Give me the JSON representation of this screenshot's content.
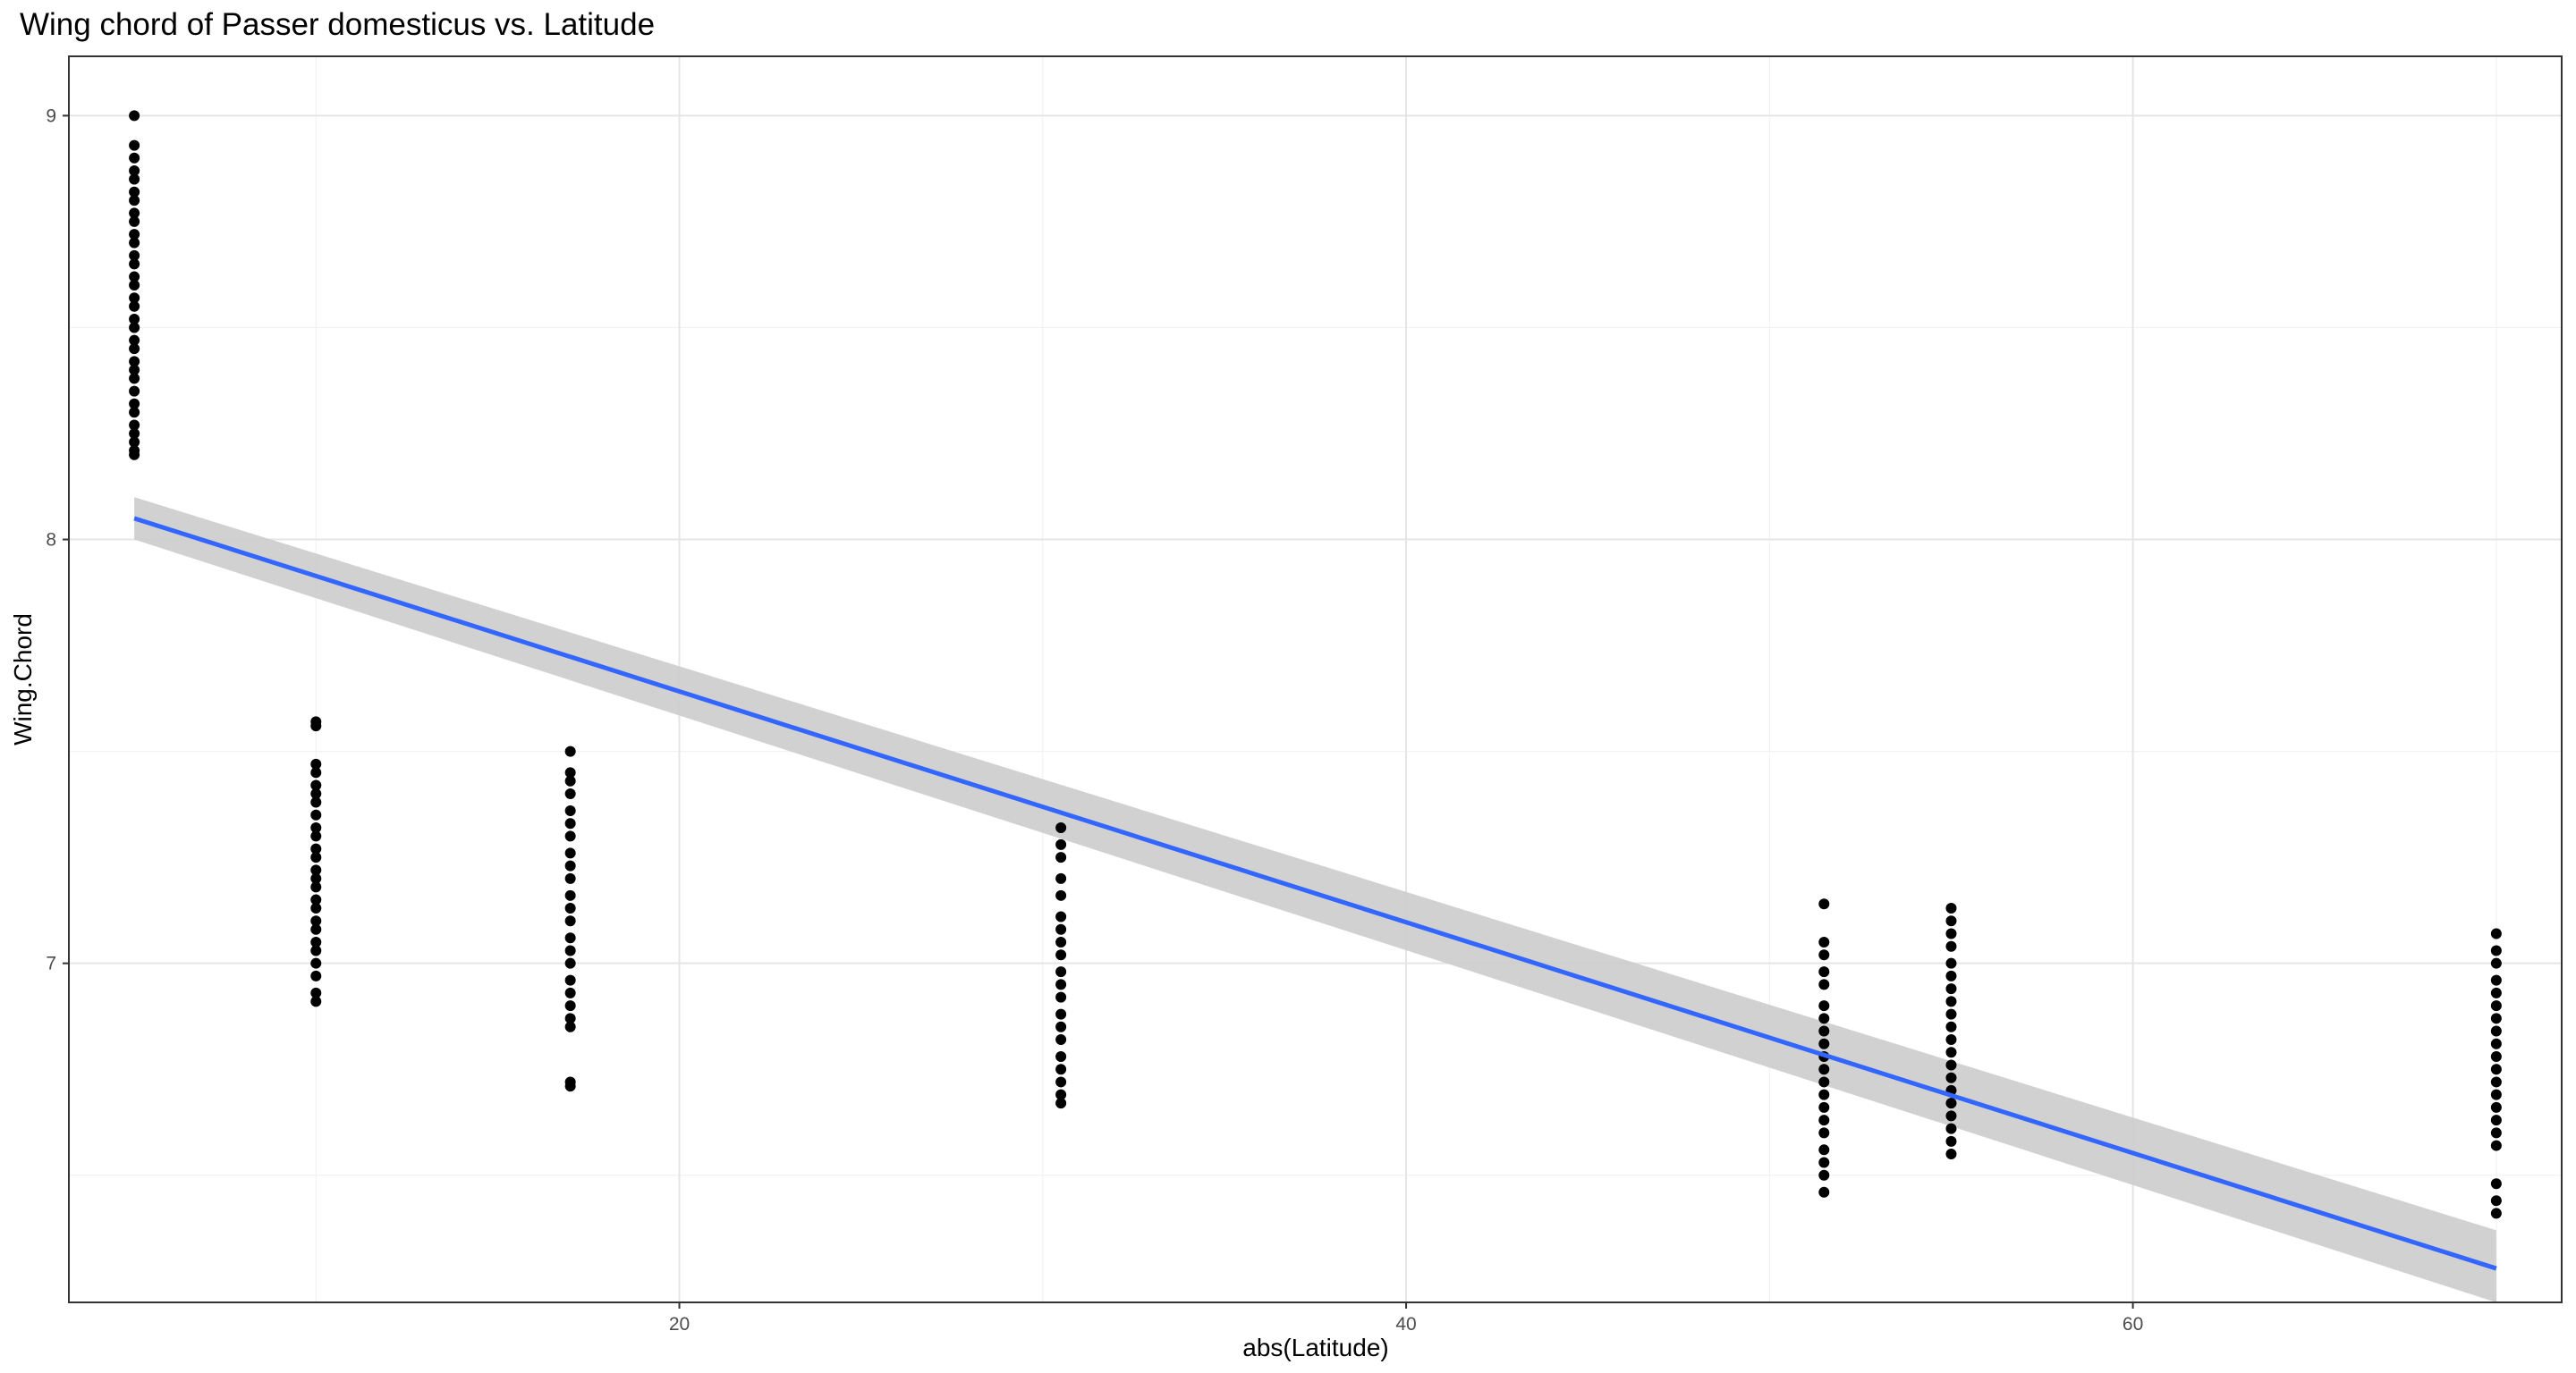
{
  "chart_data": {
    "type": "scatter",
    "title": "Wing chord of Passer domesticus vs. Latitude",
    "xlabel": "abs(Latitude)",
    "ylabel": "Wing.Chord",
    "xlim": [
      3.2,
      71.8
    ],
    "ylim": [
      6.2,
      9.14
    ],
    "x_ticks": [
      20,
      40,
      60
    ],
    "y_ticks": [
      7,
      8,
      9
    ],
    "x_minor_gridlines": [
      10,
      30,
      50,
      70
    ],
    "y_minor_gridlines": [
      6.5,
      7.5,
      8.5
    ],
    "grid": true,
    "theme": "bw",
    "colors": {
      "points": "#000000",
      "fit_line": "#3366ff",
      "confidence_band": "#cccccc",
      "grid_major": "#e5e5e5",
      "grid_minor": "#f2f2f2",
      "panel_border": "#333333"
    },
    "groups": [
      {
        "x": 5.0,
        "y": [
          8.2,
          8.21,
          8.23,
          8.25,
          8.27,
          8.3,
          8.32,
          8.35,
          8.38,
          8.4,
          8.42,
          8.45,
          8.47,
          8.5,
          8.52,
          8.55,
          8.57,
          8.6,
          8.62,
          8.65,
          8.67,
          8.7,
          8.72,
          8.75,
          8.77,
          8.8,
          8.82,
          8.85,
          8.87,
          8.9,
          8.93,
          9.0
        ]
      },
      {
        "x": 10.0,
        "y": [
          6.91,
          6.93,
          6.97,
          7.0,
          7.03,
          7.05,
          7.08,
          7.1,
          7.13,
          7.15,
          7.18,
          7.2,
          7.22,
          7.25,
          7.27,
          7.3,
          7.32,
          7.35,
          7.38,
          7.4,
          7.42,
          7.45,
          7.47,
          7.56,
          7.57
        ]
      },
      {
        "x": 17.0,
        "y": [
          6.71,
          6.72,
          6.85,
          6.87,
          6.9,
          6.93,
          6.96,
          7.0,
          7.03,
          7.06,
          7.1,
          7.13,
          7.16,
          7.2,
          7.23,
          7.26,
          7.3,
          7.33,
          7.36,
          7.4,
          7.43,
          7.45,
          7.5
        ]
      },
      {
        "x": 30.5,
        "y": [
          6.67,
          6.69,
          6.72,
          6.75,
          6.78,
          6.82,
          6.85,
          6.88,
          6.92,
          6.95,
          6.98,
          7.02,
          7.05,
          7.08,
          7.11,
          7.16,
          7.2,
          7.25,
          7.28,
          7.32
        ]
      },
      {
        "x": 51.5,
        "y": [
          6.46,
          6.5,
          6.53,
          6.56,
          6.6,
          6.63,
          6.66,
          6.69,
          6.72,
          6.75,
          6.78,
          6.81,
          6.84,
          6.87,
          6.9,
          6.95,
          6.98,
          7.02,
          7.05,
          7.14
        ]
      },
      {
        "x": 55.0,
        "y": [
          6.55,
          6.58,
          6.61,
          6.64,
          6.67,
          6.7,
          6.73,
          6.76,
          6.79,
          6.82,
          6.85,
          6.88,
          6.91,
          6.94,
          6.97,
          7.0,
          7.04,
          7.07,
          7.1,
          7.13
        ]
      },
      {
        "x": 70.0,
        "y": [
          6.41,
          6.44,
          6.48,
          6.57,
          6.6,
          6.63,
          6.66,
          6.69,
          6.72,
          6.75,
          6.78,
          6.81,
          6.84,
          6.87,
          6.9,
          6.93,
          6.96,
          7.0,
          7.03,
          7.07
        ]
      }
    ],
    "fit": {
      "method": "lm",
      "x": [
        5.0,
        70.0
      ],
      "y": [
        8.05,
        6.28
      ],
      "ci_lower": [
        8.0,
        6.2
      ],
      "ci_upper": [
        8.1,
        6.37
      ]
    }
  }
}
